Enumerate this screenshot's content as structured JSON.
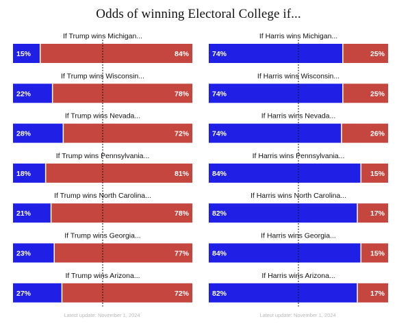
{
  "title": "Odds of winning Electoral College if...",
  "colors": {
    "dem": "#1f1fe6",
    "rep": "#c4463f",
    "divider": "#ffffff",
    "midline": "#111111"
  },
  "chart_data": [
    {
      "type": "bar",
      "panel": "left",
      "title": "",
      "xlim": [
        0,
        100
      ],
      "categories": [
        "If Trump wins Michigan...",
        "If Trump wins Wisconsin...",
        "If Trump wins Nevada...",
        "If Trump wins Pennsylvania...",
        "If Trump wins North Carolina...",
        "If Trump wins Georgia...",
        "If Trump wins Arizona..."
      ],
      "series": [
        {
          "key": "dem",
          "values": [
            15,
            22,
            28,
            18,
            21,
            23,
            27
          ],
          "labels": [
            "15%",
            "22%",
            "28%",
            "18%",
            "21%",
            "23%",
            "27%"
          ]
        },
        {
          "key": "rep",
          "values": [
            84,
            78,
            72,
            81,
            78,
            77,
            72
          ],
          "labels": [
            "84%",
            "78%",
            "72%",
            "81%",
            "78%",
            "77%",
            "72%"
          ]
        }
      ]
    },
    {
      "type": "bar",
      "panel": "right",
      "title": "",
      "xlim": [
        0,
        100
      ],
      "categories": [
        "If Harris wins Michigan...",
        "If Harris wins Wisconsin...",
        "If Harris wins Nevada...",
        "If Harris wins Pennsylvania...",
        "If Harris wins North Carolina...",
        "If Harris wins Georgia...",
        "If Harris wins Arizona..."
      ],
      "series": [
        {
          "key": "dem",
          "values": [
            74,
            74,
            74,
            84,
            82,
            84,
            82
          ],
          "labels": [
            "74%",
            "74%",
            "74%",
            "84%",
            "82%",
            "84%",
            "82%"
          ]
        },
        {
          "key": "rep",
          "values": [
            25,
            25,
            26,
            15,
            17,
            15,
            17
          ],
          "labels": [
            "25%",
            "25%",
            "26%",
            "15%",
            "17%",
            "15%",
            "17%"
          ]
        }
      ]
    }
  ],
  "footer": {
    "left": "Latest update: November 1, 2024",
    "right": "Latest update: November 1, 2024"
  }
}
